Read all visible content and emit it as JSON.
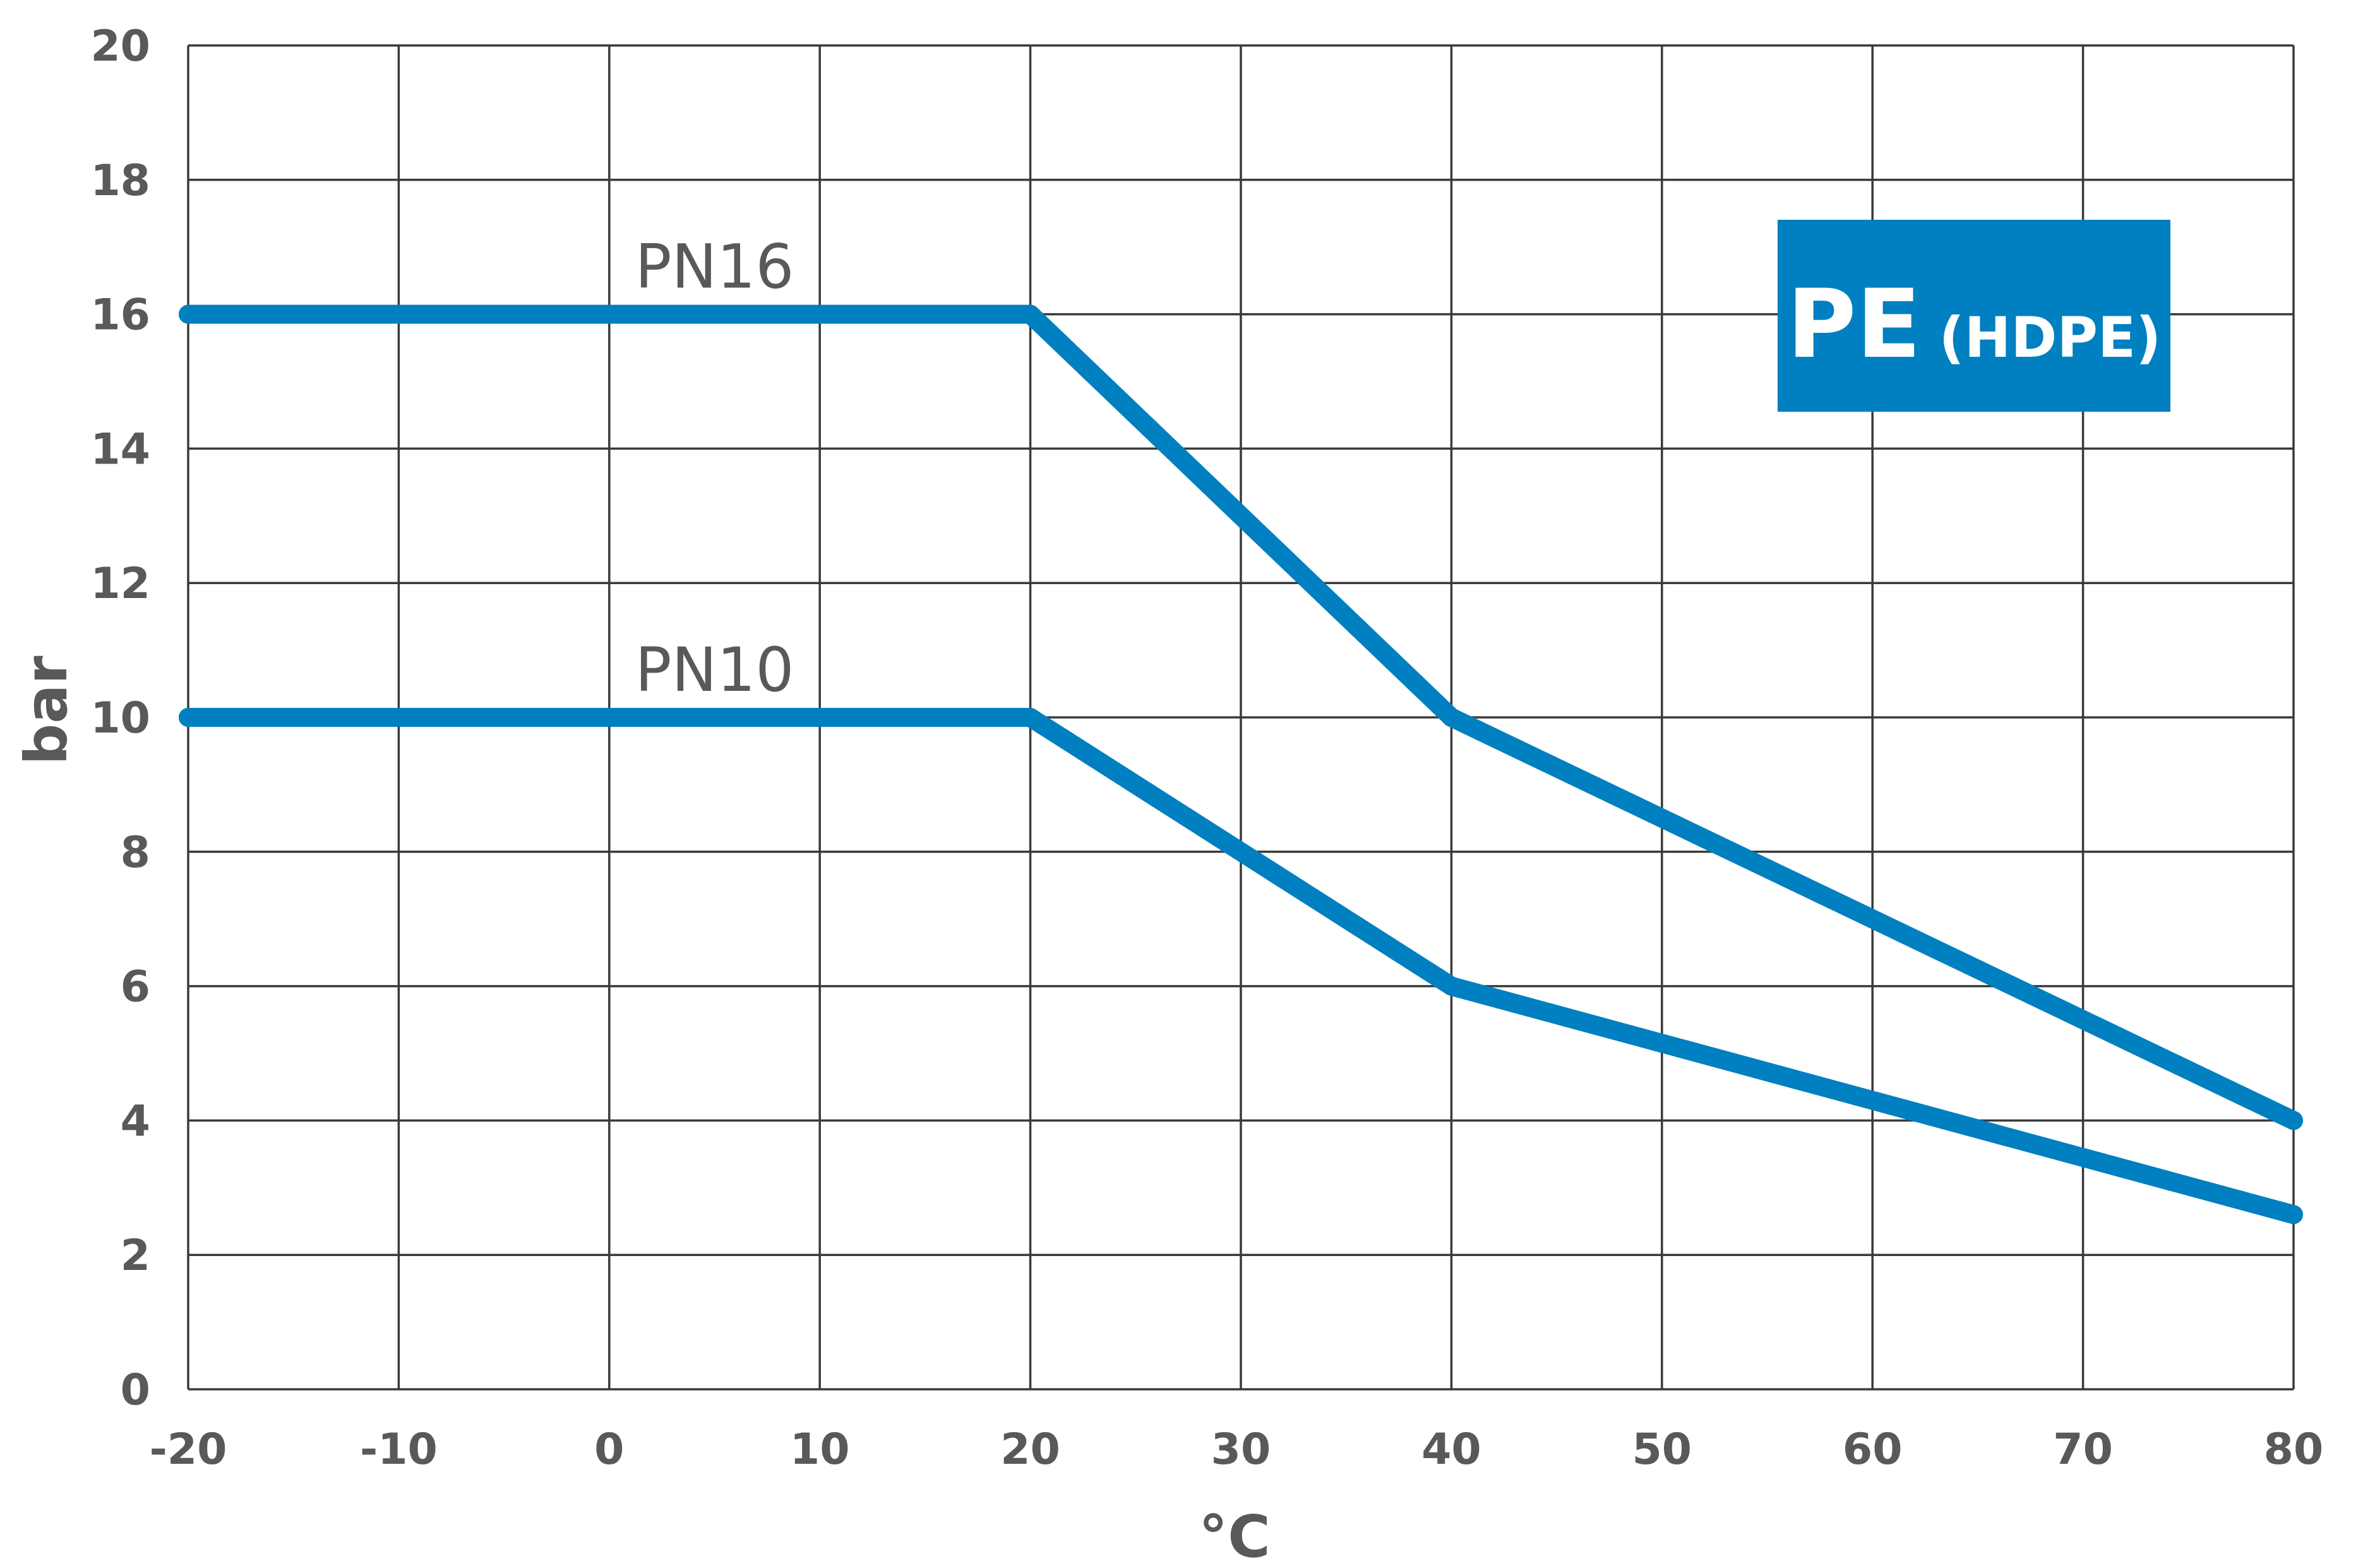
{
  "chart_data": {
    "type": "line",
    "xlabel": "°C",
    "ylabel": "bar",
    "xlim": [
      -20,
      80
    ],
    "ylim": [
      0,
      20
    ],
    "xticks": [
      -20,
      -10,
      0,
      10,
      20,
      30,
      40,
      50,
      60,
      70,
      80
    ],
    "yticks": [
      0,
      2,
      4,
      6,
      8,
      10,
      12,
      14,
      16,
      18,
      20
    ],
    "grid": true,
    "series": [
      {
        "name": "PN16",
        "label_at": {
          "x": 5,
          "y": 16
        },
        "points": [
          [
            -20,
            16
          ],
          [
            20,
            16
          ],
          [
            40,
            10
          ],
          [
            80,
            4
          ]
        ]
      },
      {
        "name": "PN10",
        "label_at": {
          "x": 5,
          "y": 10
        },
        "points": [
          [
            -20,
            10
          ],
          [
            20,
            10
          ],
          [
            40,
            6
          ],
          [
            80,
            2.6
          ]
        ]
      }
    ],
    "badge": {
      "main": "PE",
      "sub": "(HDPE)"
    }
  },
  "colors": {
    "series": "#0080C0",
    "badge_bg": "#0080C0",
    "grid": "#3a3a3a",
    "text": "#595959"
  }
}
